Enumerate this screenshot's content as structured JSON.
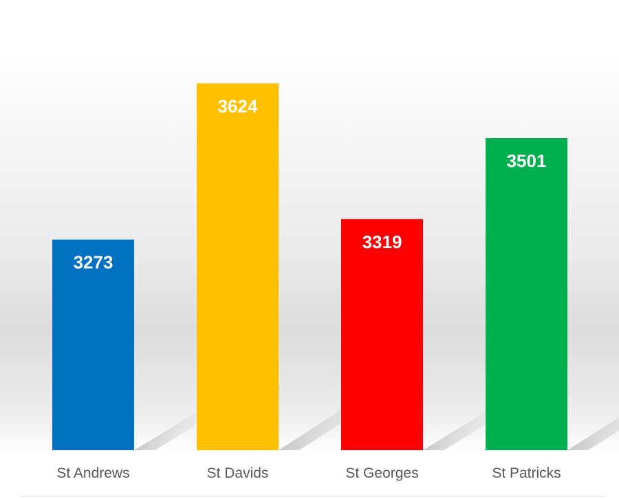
{
  "chart_data": {
    "type": "bar",
    "categories": [
      "St Andrews",
      "St Davids",
      "St Georges",
      "St Patricks"
    ],
    "values": [
      3273,
      3624,
      3319,
      3501
    ],
    "colors": [
      "#0070C0",
      "#FFC000",
      "#FF0000",
      "#00B050"
    ],
    "title": "",
    "xlabel": "",
    "ylabel": "",
    "ylim": [
      2800,
      3660
    ],
    "grid": false,
    "legend": "none",
    "data_labels": true
  }
}
